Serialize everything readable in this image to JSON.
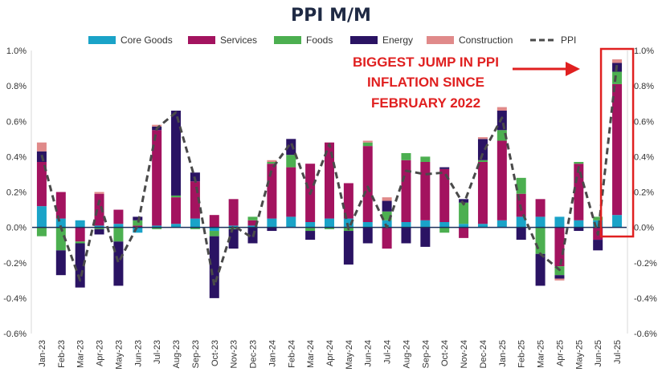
{
  "chart_data": {
    "type": "bar",
    "stacked": true,
    "title": "PPI M/M",
    "categories": [
      "Jan-23",
      "Feb-23",
      "Mar-23",
      "Apr-23",
      "May-23",
      "Jun-23",
      "Jul-23",
      "Aug-23",
      "Sep-23",
      "Oct-23",
      "Nov-23",
      "Dec-23",
      "Jan-24",
      "Feb-24",
      "Mar-24",
      "Apr-24",
      "May-24",
      "Jun-24",
      "Jul-24",
      "Aug-24",
      "Sep-24",
      "Oct-24",
      "Nov-24",
      "Dec-24",
      "Jan-25",
      "Feb-25",
      "Mar-25",
      "Apr-25",
      "May-25",
      "Jun-25",
      "Jul-25"
    ],
    "ylim": [
      -0.6,
      1.0
    ],
    "yticks": [
      -0.6,
      -0.4,
      -0.2,
      0.0,
      0.2,
      0.4,
      0.6,
      0.8,
      1.0
    ],
    "ytick_labels": [
      "-0.6%",
      "-0.4%",
      "-0.2%",
      "0.0%",
      "0.2%",
      "0.4%",
      "0.6%",
      "0.8%",
      "1.0%"
    ],
    "series": [
      {
        "name": "Core Goods",
        "color": "#1aa3c8",
        "values": [
          0.12,
          0.05,
          0.04,
          0.01,
          0.02,
          -0.03,
          0.01,
          0.02,
          0.05,
          -0.02,
          0.01,
          0.01,
          0.05,
          0.06,
          0.03,
          0.05,
          0.05,
          0.03,
          0.04,
          0.03,
          0.04,
          0.03,
          0.02,
          0.02,
          0.04,
          0.06,
          0.06,
          0.06,
          0.04,
          0.04,
          0.07
        ]
      },
      {
        "name": "Services",
        "color": "#a3135f",
        "values": [
          0.25,
          0.15,
          -0.08,
          0.18,
          0.08,
          0.01,
          0.54,
          0.15,
          0.21,
          0.07,
          0.15,
          0.03,
          0.31,
          0.28,
          0.33,
          0.43,
          0.2,
          0.43,
          -0.12,
          0.35,
          0.33,
          0.3,
          -0.06,
          0.35,
          0.45,
          0.13,
          0.1,
          -0.22,
          0.32,
          -0.07,
          0.74
        ]
      },
      {
        "name": "Foods",
        "color": "#4caf50",
        "values": [
          -0.05,
          -0.13,
          -0.01,
          -0.01,
          -0.08,
          0.03,
          -0.01,
          0.01,
          -0.01,
          -0.03,
          -0.01,
          0.02,
          0.01,
          0.07,
          -0.02,
          -0.01,
          -0.02,
          0.02,
          0.05,
          0.04,
          0.03,
          -0.03,
          0.12,
          0.01,
          0.06,
          0.09,
          -0.15,
          -0.05,
          0.01,
          0.02,
          0.07
        ]
      },
      {
        "name": "Energy",
        "color": "#2a1363",
        "values": [
          0.06,
          -0.14,
          -0.25,
          -0.03,
          -0.25,
          0.02,
          0.02,
          0.48,
          0.05,
          -0.35,
          -0.11,
          -0.09,
          -0.02,
          0.09,
          -0.05,
          0.0,
          -0.19,
          -0.09,
          0.06,
          -0.09,
          -0.11,
          0.01,
          0.02,
          0.12,
          0.11,
          -0.07,
          -0.18,
          -0.02,
          -0.02,
          -0.06,
          0.05
        ]
      },
      {
        "name": "Construction",
        "color": "#e08a8a",
        "values": [
          0.05,
          0.0,
          0.0,
          0.01,
          0.0,
          0.0,
          0.01,
          0.0,
          0.0,
          0.0,
          0.0,
          0.0,
          0.01,
          0.0,
          0.0,
          0.0,
          0.0,
          0.01,
          0.02,
          0.0,
          0.0,
          0.0,
          0.0,
          0.01,
          0.02,
          0.0,
          0.0,
          -0.01,
          0.0,
          0.0,
          0.02
        ]
      }
    ],
    "line": {
      "name": "PPI",
      "color": "#4a4a4a",
      "values": [
        0.41,
        0.0,
        -0.3,
        0.15,
        -0.2,
        0.01,
        0.56,
        0.65,
        0.27,
        -0.33,
        0.01,
        -0.06,
        0.33,
        0.48,
        0.19,
        0.47,
        -0.01,
        0.23,
        0.0,
        0.32,
        0.3,
        0.31,
        0.13,
        0.42,
        0.62,
        0.1,
        -0.15,
        -0.24,
        0.34,
        -0.04,
        0.93
      ]
    },
    "legend": [
      "Core Goods",
      "Services",
      "Foods",
      "Energy",
      "Construction",
      "PPI"
    ],
    "legend_position": "top",
    "annotation": {
      "lines": [
        "BIGGEST JUMP IN PPI",
        "INFLATION SINCE",
        "FEBRUARY 2022"
      ],
      "color": "#e02020",
      "target_category": "Jul-25"
    }
  }
}
